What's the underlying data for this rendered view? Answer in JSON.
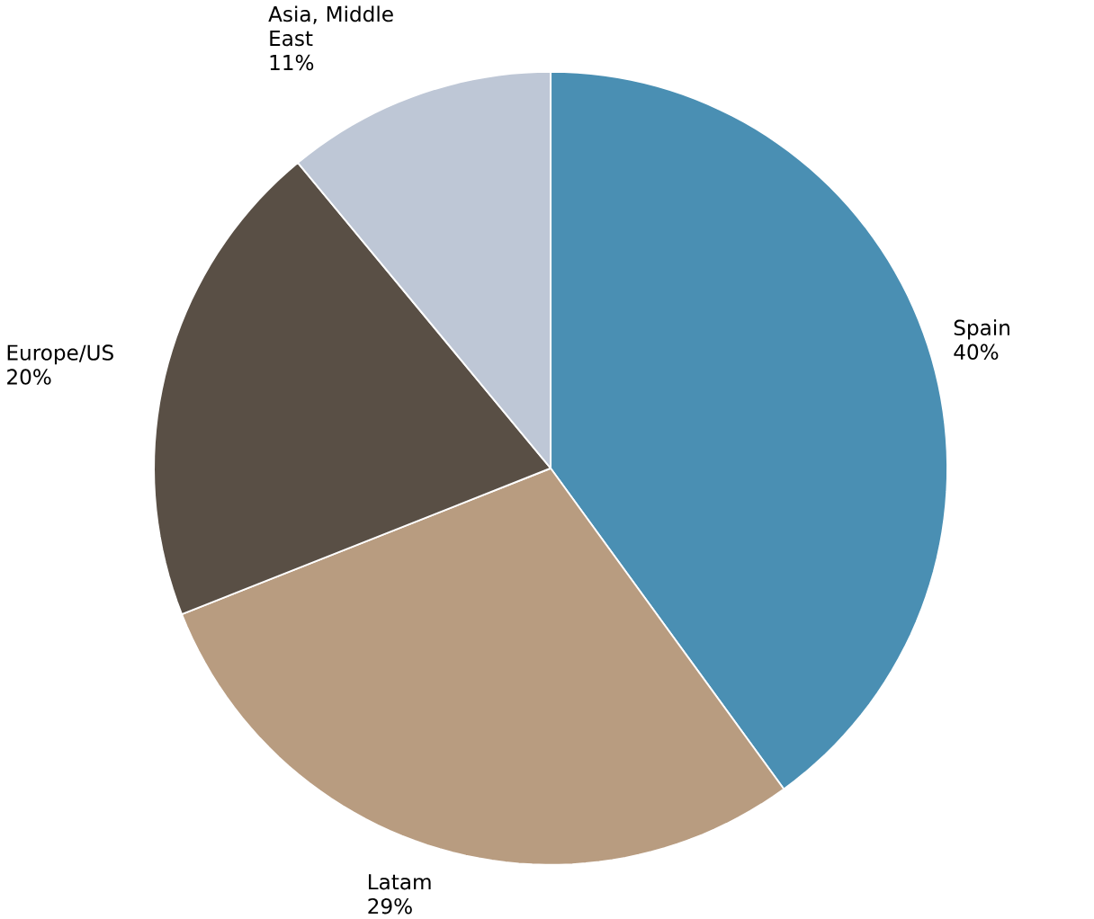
{
  "chart_data": {
    "type": "pie",
    "categories": [
      "Spain",
      "Latam",
      "Europe/US",
      "Asia, Middle East"
    ],
    "values": [
      40,
      29,
      20,
      11
    ],
    "value_labels": [
      "40%",
      "29%",
      "20%",
      "11%"
    ],
    "colors": [
      "#4a8fb3",
      "#b89c80",
      "#594f45",
      "#bec7d6"
    ]
  }
}
